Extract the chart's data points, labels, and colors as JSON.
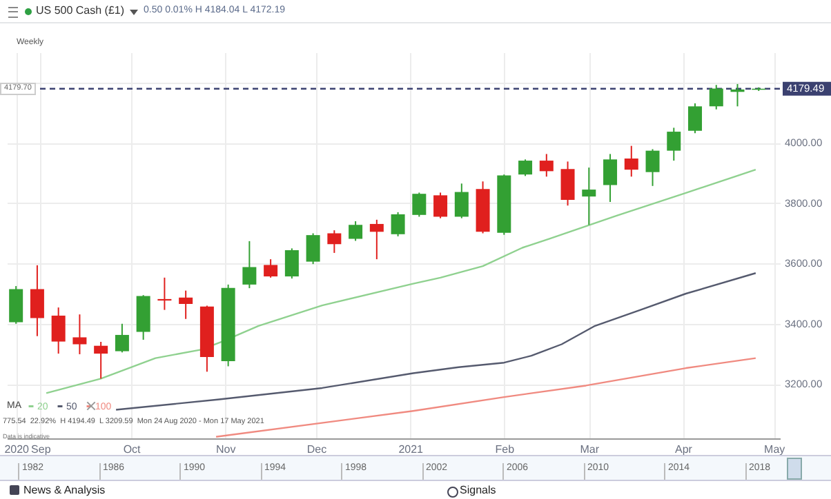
{
  "chart_data": {
    "type": "candlestick",
    "title": "US 500 Cash (£1)",
    "subtitle": "0.50 0.01% H 4184.04 L 4172.19",
    "x": [
      "2020-08-24",
      "2020-08-31",
      "2020-09-07",
      "2020-09-14",
      "2020-09-21",
      "2020-09-28",
      "2020-10-05",
      "2020-10-12",
      "2020-10-19",
      "2020-10-26",
      "2020-11-02",
      "2020-11-09",
      "2020-11-16",
      "2020-11-23",
      "2020-11-30",
      "2020-12-07",
      "2020-12-14",
      "2020-12-21",
      "2020-12-28",
      "2021-01-04",
      "2021-01-11",
      "2021-01-18",
      "2021-01-25",
      "2021-02-01",
      "2021-02-08",
      "2021-02-15",
      "2021-02-22",
      "2021-03-01",
      "2021-03-08",
      "2021-03-15",
      "2021-03-22",
      "2021-03-29",
      "2021-04-05",
      "2021-04-12",
      "2021-04-19",
      "2021-04-26"
    ],
    "ohlc": [
      [
        3405,
        3525,
        3400,
        3515
      ],
      [
        3515,
        3594,
        3359,
        3419
      ],
      [
        3427,
        3454,
        3301,
        3341
      ],
      [
        3355,
        3431,
        3299,
        3332
      ],
      [
        3327,
        3340,
        3218,
        3301
      ],
      [
        3309,
        3400,
        3305,
        3363
      ],
      [
        3373,
        3495,
        3347,
        3492
      ],
      [
        3482,
        3553,
        3446,
        3477
      ],
      [
        3487,
        3510,
        3416,
        3466
      ],
      [
        3457,
        3460,
        3241,
        3290
      ],
      [
        3276,
        3530,
        3259,
        3519
      ],
      [
        3530,
        3674,
        3518,
        3588
      ],
      [
        3595,
        3614,
        3553,
        3557
      ],
      [
        3557,
        3650,
        3550,
        3644
      ],
      [
        3606,
        3700,
        3598,
        3694
      ],
      [
        3700,
        3710,
        3635,
        3664
      ],
      [
        3682,
        3740,
        3675,
        3728
      ],
      [
        3731,
        3745,
        3614,
        3705
      ],
      [
        3697,
        3770,
        3690,
        3763
      ],
      [
        3761,
        3835,
        3755,
        3831
      ],
      [
        3826,
        3835,
        3750,
        3755
      ],
      [
        3755,
        3865,
        3750,
        3837
      ],
      [
        3847,
        3872,
        3700,
        3705
      ],
      [
        3702,
        3895,
        3695,
        3892
      ],
      [
        3895,
        3945,
        3890,
        3941
      ],
      [
        3941,
        3963,
        3888,
        3906
      ],
      [
        3913,
        3938,
        3792,
        3811
      ],
      [
        3822,
        3918,
        3728,
        3845
      ],
      [
        3860,
        3963,
        3804,
        3945
      ],
      [
        3948,
        3990,
        3888,
        3911
      ],
      [
        3903,
        3979,
        3857,
        3974
      ],
      [
        3974,
        4050,
        3941,
        4037
      ],
      [
        4040,
        4131,
        4032,
        4121
      ],
      [
        4121,
        4192,
        4111,
        4180
      ],
      [
        4169,
        4195,
        4121,
        4177
      ],
      [
        4176,
        4184.04,
        4172.19,
        4179.49
      ]
    ],
    "colors": [
      "#33a033",
      "#e0201e",
      "#e0201e",
      "#e0201e",
      "#e0201e",
      "#33a033",
      "#33a033",
      "#e0201e",
      "#e0201e",
      "#e0201e",
      "#33a033",
      "#33a033",
      "#e0201e",
      "#33a033",
      "#33a033",
      "#e0201e",
      "#33a033",
      "#e0201e",
      "#33a033",
      "#33a033",
      "#e0201e",
      "#33a033",
      "#e0201e",
      "#33a033",
      "#33a033",
      "#e0201e",
      "#e0201e",
      "#33a033",
      "#33a033",
      "#e0201e",
      "#33a033",
      "#33a033",
      "#33a033",
      "#33a033",
      "#33a033",
      "#33a033"
    ],
    "series": [
      {
        "type": "line",
        "name": "20",
        "color": "#8fd18f",
        "x": [
          "2020-09-03",
          "2020-09-21",
          "2020-10-09",
          "2020-10-24",
          "2020-10-31",
          "2020-11-12",
          "2020-12-03",
          "2021-01-02",
          "2021-01-11",
          "2021-01-25",
          "2021-02-07",
          "2021-02-16",
          "2021-03-10",
          "2021-04-02",
          "2021-04-25"
        ],
        "values": [
          3170,
          3218,
          3286,
          3314,
          3341,
          3393,
          3461,
          3533,
          3553,
          3591,
          3652,
          3682,
          3758,
          3834,
          3911
        ]
      },
      {
        "type": "line",
        "name": "50",
        "color": "#555a6e",
        "x": [
          "2020-09-26",
          "2020-10-30",
          "2020-12-03",
          "2021-01-02",
          "2021-01-17",
          "2021-02-01",
          "2021-02-10",
          "2021-02-20",
          "2021-03-03",
          "2021-03-18",
          "2021-04-02",
          "2021-04-25"
        ],
        "values": [
          3115,
          3149,
          3187,
          3236,
          3256,
          3271,
          3294,
          3332,
          3393,
          3446,
          3500,
          3568
        ]
      },
      {
        "type": "line",
        "name": "100",
        "color": "#f08a80",
        "x": [
          "2020-10-29",
          "2021-01-02",
          "2021-02-01",
          "2021-02-28",
          "2021-04-02",
          "2021-04-25"
        ],
        "values": [
          3025,
          3111,
          3157,
          3195,
          3253,
          3286
        ]
      }
    ],
    "legend": "bottom left",
    "legend_title": "MA",
    "line_style": "solid",
    "marker": "none",
    "xlim": [
      "2020-08-21",
      "2021-05-03"
    ],
    "xticks": [
      {
        "value": "2020-08-24",
        "label": "2020"
      },
      {
        "value": "2020-09-01",
        "label": "Sep"
      },
      {
        "value": "2020-10-01",
        "label": "Oct"
      },
      {
        "value": "2020-11-01",
        "label": "Nov"
      },
      {
        "value": "2020-12-01",
        "label": "Dec"
      },
      {
        "value": "2021-01-01",
        "label": "2021"
      },
      {
        "value": "2021-02-01",
        "label": "Feb"
      },
      {
        "value": "2021-03-01",
        "label": "Mar"
      },
      {
        "value": "2021-04-01",
        "label": "Apr"
      },
      {
        "value": "2021-05-01",
        "label": "May"
      }
    ],
    "ylim": [
      3020,
      4300
    ],
    "yticks": [
      {
        "value": 3200,
        "label": "3200.00"
      },
      {
        "value": 3400,
        "label": "3400.00"
      },
      {
        "value": 3600,
        "label": "3600.00"
      },
      {
        "value": 3800,
        "label": "3800.00"
      },
      {
        "value": 4000,
        "label": "4000.00"
      },
      {
        "value": 4200,
        "label": null
      }
    ],
    "grid": true,
    "ref_lines": [
      {
        "axis": "y",
        "value": 4179.49,
        "label": "4179.49",
        "color": "#3b4170",
        "line_style": "dashed"
      }
    ],
    "annotations": [
      "Weekly",
      "4179.70",
      "775.54  22.92%  H 4194.49  L 3209.59  Mon 24 Aug 2020 - Mon 17 May 2021",
      "Data is indicative",
      "1982",
      "1986",
      "1990",
      "1994",
      "1998",
      "2002",
      "2006",
      "2010",
      "2014",
      "2018",
      "News & Analysis",
      "Signals"
    ]
  }
}
